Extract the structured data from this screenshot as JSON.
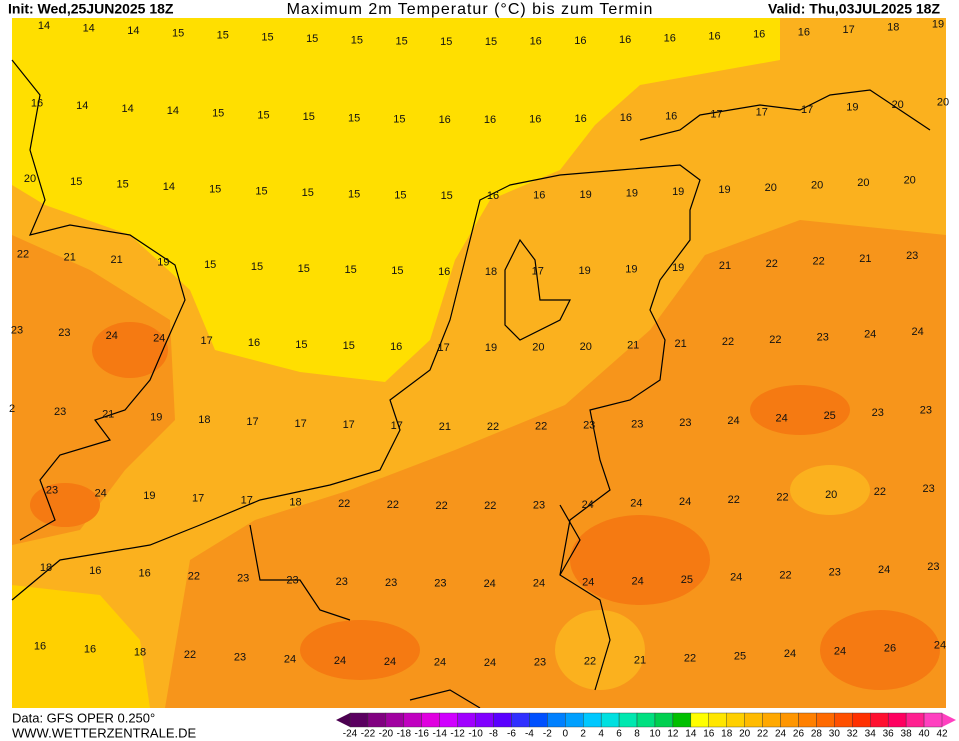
{
  "header": {
    "init": "Init: Wed,25JUN2025 18Z",
    "title": "Maximum 2m Temperatur (°C) bis zum Termin",
    "valid": "Valid: Thu,03JUL2025 18Z"
  },
  "map": {
    "rows": [
      [
        14,
        14,
        14,
        15,
        15,
        15,
        15,
        15,
        15,
        15,
        15,
        16,
        16,
        16,
        16,
        16,
        16,
        16,
        17,
        18,
        19
      ],
      [
        16,
        14,
        14,
        14,
        15,
        15,
        15,
        15,
        15,
        16,
        16,
        16,
        16,
        16,
        16,
        17,
        17,
        17,
        19,
        20,
        20
      ],
      [
        20,
        15,
        15,
        14,
        15,
        15,
        15,
        15,
        15,
        15,
        16,
        16,
        19,
        19,
        19,
        19,
        20,
        20,
        20,
        20
      ],
      [
        22,
        21,
        21,
        19,
        15,
        15,
        15,
        15,
        15,
        16,
        18,
        17,
        19,
        19,
        19,
        21,
        22,
        22,
        21,
        23
      ],
      [
        23,
        23,
        24,
        24,
        17,
        16,
        15,
        15,
        16,
        17,
        19,
        20,
        20,
        21,
        21,
        22,
        22,
        23,
        24,
        24
      ],
      [
        2,
        23,
        21,
        19,
        18,
        17,
        17,
        17,
        17,
        21,
        22,
        22,
        23,
        23,
        23,
        24,
        24,
        25,
        23,
        23
      ],
      [
        23,
        24,
        19,
        17,
        17,
        18,
        22,
        22,
        22,
        22,
        23,
        24,
        24,
        24,
        22,
        22,
        20,
        22,
        23
      ],
      [
        18,
        16,
        16,
        22,
        23,
        23,
        23,
        23,
        23,
        24,
        24,
        24,
        24,
        25,
        24,
        22,
        23,
        24,
        23
      ],
      [
        16,
        16,
        18,
        22,
        23,
        24,
        24,
        24,
        24,
        24,
        23,
        22,
        21,
        22,
        25,
        24,
        24,
        26,
        24
      ]
    ]
  },
  "legend": {
    "ticks": [
      -24,
      -22,
      -20,
      -18,
      -16,
      -14,
      -12,
      -10,
      -8,
      -6,
      -4,
      -2,
      0,
      2,
      4,
      6,
      8,
      10,
      12,
      14,
      16,
      18,
      20,
      22,
      24,
      26,
      28,
      30,
      32,
      34,
      36,
      38,
      40,
      42
    ],
    "colors": [
      "#5a0060",
      "#800080",
      "#a000a0",
      "#c000c0",
      "#e000e0",
      "#d000ff",
      "#a000ff",
      "#8000ff",
      "#5a00ff",
      "#3030ff",
      "#0050ff",
      "#0080ff",
      "#00a0ff",
      "#00c8ff",
      "#00e0e0",
      "#00e8b0",
      "#00e080",
      "#00d050",
      "#00c000",
      "#ffff00",
      "#ffe600",
      "#ffd000",
      "#ffbb00",
      "#ffa800",
      "#ff9600",
      "#ff8000",
      "#ff6a00",
      "#ff5000",
      "#ff3000",
      "#ff1030",
      "#ff0060",
      "#ff2090",
      "#ff40c0"
    ]
  },
  "footer": {
    "data": "Data: GFS OPER 0.250°",
    "site": "WWW.WETTERZENTRALE.DE"
  }
}
